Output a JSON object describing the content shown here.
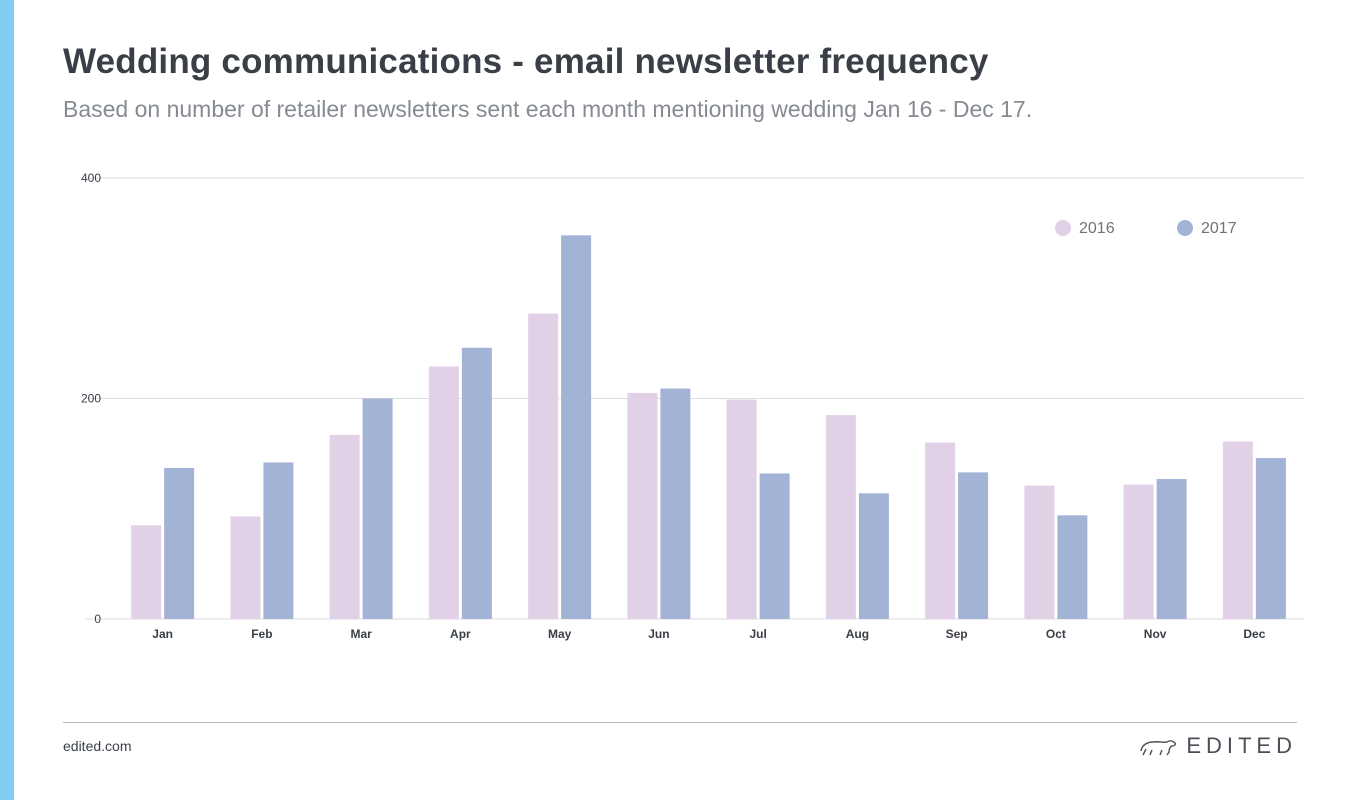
{
  "page": {
    "title": "Wedding communications - email newsletter frequency",
    "subtitle": "Based on number of retailer newsletters sent each month mentioning wedding Jan 16 - Dec 17."
  },
  "footer": {
    "link": "edited.com",
    "brand": "EDITED",
    "logo_icon": "polar-bear-icon"
  },
  "colors": {
    "accent": "#7fcdf1",
    "series_2016": "#e2d0e7",
    "series_2017": "#a3b3d6",
    "grid": "#dcdde0",
    "text": "#3a3f47"
  },
  "chart_data": {
    "type": "bar",
    "title": "Wedding communications - email newsletter frequency",
    "subtitle": "Based on number of retailer newsletters sent each month mentioning wedding Jan 16 - Dec 17.",
    "xlabel": "",
    "ylabel": "",
    "ylim": [
      0,
      400
    ],
    "yticks": [
      0,
      200,
      400
    ],
    "grid": true,
    "legend_position": "top-right",
    "categories": [
      "Jan",
      "Feb",
      "Mar",
      "Apr",
      "May",
      "Jun",
      "Jul",
      "Aug",
      "Sep",
      "Oct",
      "Nov",
      "Dec"
    ],
    "series": [
      {
        "name": "2016",
        "color": "#e2d0e7",
        "values": [
          85,
          93,
          167,
          229,
          277,
          205,
          199,
          185,
          160,
          121,
          122,
          161
        ]
      },
      {
        "name": "2017",
        "color": "#a3b3d6",
        "values": [
          137,
          142,
          200,
          246,
          348,
          209,
          132,
          114,
          133,
          94,
          127,
          146
        ]
      }
    ]
  }
}
